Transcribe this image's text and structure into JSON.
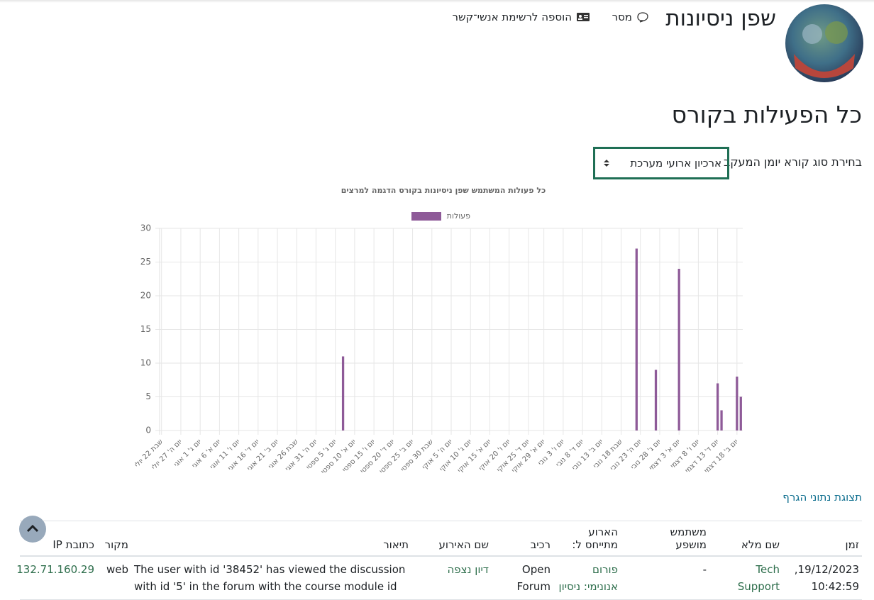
{
  "header": {
    "name": "שפן ניסיונות",
    "links": [
      "מסר",
      "הוספה לרשימת אנשי־קשר"
    ]
  },
  "page_title": "כל הפעילות בקורס",
  "log_reader": {
    "label": "בחירת סוג קורא יומן המעקב",
    "value": "ארכיון ארועי מערכת"
  },
  "chart_data": {
    "type": "bar",
    "title": "כל פעולות המשתמש שפן ניסיונות בקורס הדגמה למרצים",
    "categories": [
      "שבת 22 יולי",
      null,
      null,
      null,
      null,
      "יום ה' 27 יולי",
      null,
      null,
      null,
      null,
      "יום ג' 1 אוגי",
      null,
      null,
      null,
      null,
      "יום א' 6 אוגי",
      null,
      null,
      null,
      null,
      "יום ו' 11 אוגי",
      null,
      null,
      null,
      null,
      "יום ד' 16 אוגי",
      null,
      null,
      null,
      null,
      "יום ב' 21 אוגי",
      null,
      null,
      null,
      null,
      "שבת 26 אוגי",
      null,
      null,
      null,
      null,
      "יום ה' 31 אוגי",
      null,
      null,
      null,
      null,
      "יום ג' 5 ספטי",
      null,
      null,
      null,
      null,
      "יום א' 10 ספטי",
      null,
      null,
      null,
      null,
      "יום ו' 15 ספטי",
      null,
      null,
      null,
      null,
      "יום ד' 20 ספטי",
      null,
      null,
      null,
      null,
      "יום ב' 25 ספטי",
      null,
      null,
      null,
      null,
      "שבת 30 ספטי",
      null,
      null,
      null,
      null,
      "יום ה' 5 אוקי",
      null,
      null,
      null,
      null,
      "יום ג' 10 אוקי",
      null,
      null,
      null,
      null,
      "יום א' 15 אוקי",
      null,
      null,
      null,
      null,
      "יום ו' 20 אוקי",
      null,
      null,
      null,
      null,
      "יום ד' 25 אוקי",
      null,
      null,
      null,
      "יום א' 29 אוקי",
      null,
      null,
      null,
      null,
      "יום ו' 3 נובי",
      null,
      null,
      null,
      null,
      "יום ד' 8 נובי",
      null,
      null,
      null,
      null,
      "יום ב' 13 נובי",
      null,
      null,
      null,
      null,
      "שבת 18 נובי",
      null,
      null,
      null,
      null,
      "יום ה' 23 נובי",
      null,
      null,
      null,
      null,
      "יום ג' 28 נובי",
      null,
      null,
      null,
      null,
      "יום א' 3 דצמי",
      null,
      null,
      null,
      null,
      "יום ו' 8 דצמי",
      null,
      null,
      null,
      null,
      "יום ד' 13 דצמי",
      null,
      null,
      null,
      null,
      "יום ב' 18 דצמי",
      null
    ],
    "series": [
      {
        "name": "פעולות",
        "color": "#8e5a98",
        "values": [
          0,
          0,
          0,
          0,
          0,
          0,
          0,
          0,
          0,
          0,
          0,
          0,
          0,
          0,
          0,
          0,
          0,
          0,
          0,
          0,
          0,
          0,
          0,
          0,
          0,
          0,
          0,
          0,
          0,
          0,
          0,
          0,
          0,
          0,
          0,
          0,
          0,
          0,
          0,
          0,
          0,
          0,
          0,
          0,
          0,
          0,
          0,
          11,
          0,
          0,
          0,
          0,
          0,
          0,
          0,
          0,
          0,
          0,
          0,
          0,
          0,
          0,
          0,
          0,
          0,
          0,
          0,
          0,
          0,
          0,
          0,
          0,
          0,
          0,
          0,
          0,
          0,
          0,
          0,
          0,
          0,
          0,
          0,
          0,
          0,
          0,
          0,
          0,
          0,
          0,
          0,
          0,
          0,
          0,
          0,
          0,
          0,
          0,
          0,
          0,
          0,
          0,
          0,
          0,
          0,
          0,
          0,
          0,
          0,
          0,
          0,
          0,
          0,
          0,
          0,
          0,
          0,
          0,
          0,
          0,
          0,
          0,
          0,
          27,
          0,
          0,
          0,
          0,
          9,
          0,
          0,
          0,
          0,
          0,
          24,
          0,
          0,
          0,
          0,
          0,
          0,
          0,
          0,
          0,
          7,
          3,
          0,
          0,
          0,
          8,
          5
        ]
      }
    ],
    "ylim": [
      0,
      30
    ],
    "yticks": [
      0,
      5,
      10,
      15,
      20,
      25,
      30
    ],
    "grid": true,
    "legend": "top"
  },
  "graph_link": "תצוגת נתוני הגרף",
  "table": {
    "headers": [
      "זמן",
      "שם מלא",
      "משתמש מושפע",
      "הארוע מתייחס ל:",
      "רכיב",
      "שם האירוע",
      "תיאור",
      "מקור",
      "כתובת IP"
    ],
    "rows": [
      [
        "19/12/2023, 10:42:59",
        "Tech Support",
        "-",
        "פורום אנונימי: ניסיון",
        "Open Forum",
        "דיון נצפה",
        "The user with id '38452' has viewed the discussion with id '5' in the forum with the course module id",
        "web",
        "132.71.160.29"
      ]
    ]
  }
}
